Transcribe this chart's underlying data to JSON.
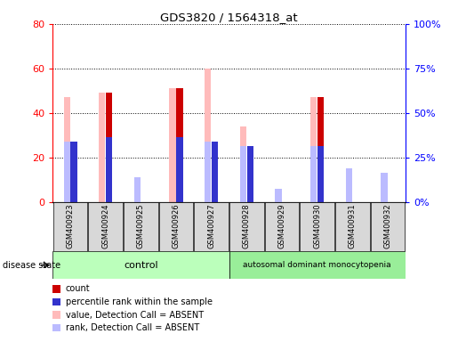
{
  "title": "GDS3820 / 1564318_at",
  "samples": [
    "GSM400923",
    "GSM400924",
    "GSM400925",
    "GSM400926",
    "GSM400927",
    "GSM400928",
    "GSM400929",
    "GSM400930",
    "GSM400931",
    "GSM400932"
  ],
  "groups": [
    "control",
    "control",
    "control",
    "control",
    "control",
    "autosomal dominant monocytopenia",
    "autosomal dominant monocytopenia",
    "autosomal dominant monocytopenia",
    "autosomal dominant monocytopenia",
    "autosomal dominant monocytopenia"
  ],
  "count": [
    0,
    49,
    0,
    51,
    0,
    0,
    0,
    47,
    0,
    0
  ],
  "percentile": [
    27,
    29,
    0,
    29,
    27,
    25,
    0,
    25,
    0,
    0
  ],
  "value_absent": [
    47,
    49,
    11,
    51,
    60,
    34,
    6,
    47,
    15,
    13
  ],
  "rank_absent": [
    27,
    0,
    11,
    0,
    27,
    25,
    6,
    25,
    15,
    13
  ],
  "ylim_left": [
    0,
    80
  ],
  "ylim_right": [
    0,
    100
  ],
  "yticks_left": [
    0,
    20,
    40,
    60,
    80
  ],
  "yticks_right": [
    0,
    25,
    50,
    75,
    100
  ],
  "ytick_right_labels": [
    "0%",
    "25%",
    "50%",
    "75%",
    "100%"
  ],
  "color_count": "#cc0000",
  "color_percentile": "#3333cc",
  "color_value_absent": "#ffbbbb",
  "color_rank_absent": "#bbbbff",
  "color_group_control": "#bbffbb",
  "color_group_disease": "#99ee99",
  "legend_items": [
    "count",
    "percentile rank within the sample",
    "value, Detection Call = ABSENT",
    "rank, Detection Call = ABSENT"
  ]
}
